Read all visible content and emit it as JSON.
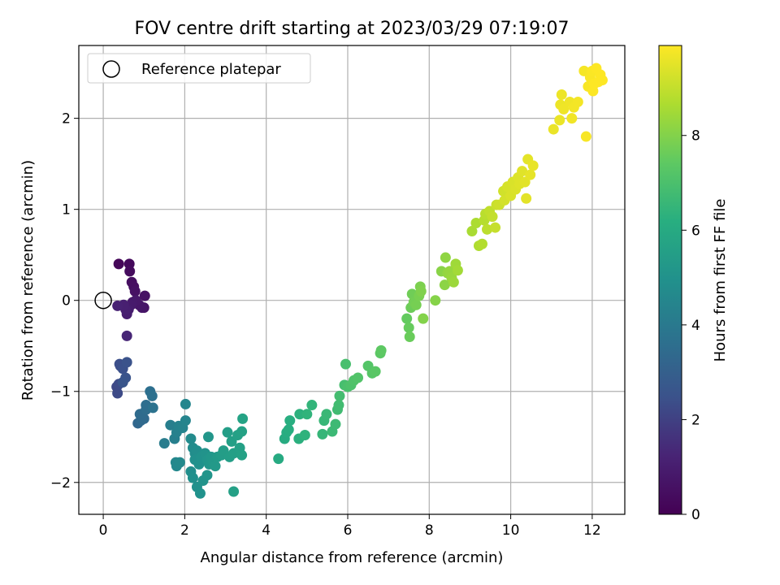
{
  "chart_data": {
    "type": "scatter",
    "title": "FOV centre drift starting at 2023/03/29 07:19:07",
    "xlabel": "Angular distance from reference (arcmin)",
    "ylabel": "Rotation from reference (arcmin)",
    "xlim": [
      -0.6,
      12.8
    ],
    "ylim": [
      -2.35,
      2.8
    ],
    "xticks": [
      0,
      2,
      4,
      6,
      8,
      10,
      12
    ],
    "yticks": [
      -2,
      -1,
      0,
      1,
      2
    ],
    "grid": true,
    "legend": {
      "placement": "top-left",
      "entries": [
        "Reference platepar"
      ]
    },
    "reference_point": {
      "x": 0,
      "y": 0
    },
    "colorbar": {
      "label": "Hours from first FF file",
      "colormap": "viridis",
      "range": [
        0,
        9.9
      ],
      "ticks": [
        0,
        2,
        4,
        6,
        8
      ]
    },
    "points": [
      {
        "x": 0.38,
        "y": 0.4,
        "h": 0.2
      },
      {
        "x": 0.64,
        "y": 0.4,
        "h": 0.3
      },
      {
        "x": 0.65,
        "y": 0.32,
        "h": 0.35
      },
      {
        "x": 0.7,
        "y": 0.2,
        "h": 0.45
      },
      {
        "x": 0.75,
        "y": 0.15,
        "h": 0.5
      },
      {
        "x": 0.78,
        "y": 0.1,
        "h": 0.55
      },
      {
        "x": 1.02,
        "y": 0.05,
        "h": 0.6
      },
      {
        "x": 1.0,
        "y": -0.08,
        "h": 0.65
      },
      {
        "x": 0.95,
        "y": -0.08,
        "h": 0.7
      },
      {
        "x": 0.88,
        "y": -0.05,
        "h": 0.75
      },
      {
        "x": 0.8,
        "y": 0.0,
        "h": 0.8
      },
      {
        "x": 0.72,
        "y": -0.02,
        "h": 0.85
      },
      {
        "x": 0.68,
        "y": -0.05,
        "h": 0.9
      },
      {
        "x": 0.62,
        "y": -0.1,
        "h": 0.95
      },
      {
        "x": 0.58,
        "y": -0.15,
        "h": 1.0
      },
      {
        "x": 0.55,
        "y": -0.1,
        "h": 1.05
      },
      {
        "x": 0.5,
        "y": -0.05,
        "h": 1.1
      },
      {
        "x": 0.35,
        "y": -0.06,
        "h": 1.15
      },
      {
        "x": 0.58,
        "y": -0.39,
        "h": 1.3
      },
      {
        "x": 0.33,
        "y": -0.95,
        "h": 2.2
      },
      {
        "x": 0.35,
        "y": -1.02,
        "h": 2.25
      },
      {
        "x": 0.38,
        "y": -0.92,
        "h": 2.3
      },
      {
        "x": 0.42,
        "y": -0.72,
        "h": 2.35
      },
      {
        "x": 0.4,
        "y": -0.7,
        "h": 2.4
      },
      {
        "x": 0.48,
        "y": -0.75,
        "h": 2.45
      },
      {
        "x": 0.58,
        "y": -0.68,
        "h": 2.5
      },
      {
        "x": 0.55,
        "y": -0.85,
        "h": 2.55
      },
      {
        "x": 0.48,
        "y": -0.9,
        "h": 2.6
      },
      {
        "x": 0.85,
        "y": -1.35,
        "h": 3.3
      },
      {
        "x": 0.92,
        "y": -1.32,
        "h": 3.35
      },
      {
        "x": 1.0,
        "y": -1.3,
        "h": 3.4
      },
      {
        "x": 0.9,
        "y": -1.25,
        "h": 3.45
      },
      {
        "x": 1.05,
        "y": -1.2,
        "h": 3.5
      },
      {
        "x": 1.05,
        "y": -1.15,
        "h": 3.55
      },
      {
        "x": 1.15,
        "y": -1.0,
        "h": 3.6
      },
      {
        "x": 1.2,
        "y": -1.05,
        "h": 3.65
      },
      {
        "x": 1.22,
        "y": -1.18,
        "h": 3.7
      },
      {
        "x": 1.5,
        "y": -1.57,
        "h": 4.1
      },
      {
        "x": 1.65,
        "y": -1.37,
        "h": 4.2
      },
      {
        "x": 1.75,
        "y": -1.52,
        "h": 4.25
      },
      {
        "x": 1.8,
        "y": -1.45,
        "h": 4.3
      },
      {
        "x": 1.85,
        "y": -1.38,
        "h": 4.35
      },
      {
        "x": 1.95,
        "y": -1.4,
        "h": 4.4
      },
      {
        "x": 2.02,
        "y": -1.32,
        "h": 4.45
      },
      {
        "x": 2.02,
        "y": -1.14,
        "h": 4.5
      },
      {
        "x": 1.78,
        "y": -1.78,
        "h": 4.55
      },
      {
        "x": 1.8,
        "y": -1.82,
        "h": 4.6
      },
      {
        "x": 1.88,
        "y": -1.78,
        "h": 4.65
      },
      {
        "x": 2.15,
        "y": -1.52,
        "h": 4.7
      },
      {
        "x": 2.2,
        "y": -1.62,
        "h": 4.75
      },
      {
        "x": 2.25,
        "y": -1.68,
        "h": 4.8
      },
      {
        "x": 2.3,
        "y": -1.65,
        "h": 4.85
      },
      {
        "x": 2.25,
        "y": -1.75,
        "h": 4.9
      },
      {
        "x": 2.35,
        "y": -1.8,
        "h": 4.95
      },
      {
        "x": 2.4,
        "y": -1.72,
        "h": 5.0
      },
      {
        "x": 2.5,
        "y": -1.68,
        "h": 5.05
      },
      {
        "x": 2.55,
        "y": -1.75,
        "h": 5.1
      },
      {
        "x": 2.6,
        "y": -1.8,
        "h": 5.15
      },
      {
        "x": 2.65,
        "y": -1.72,
        "h": 5.2
      },
      {
        "x": 2.7,
        "y": -1.78,
        "h": 5.25
      },
      {
        "x": 2.75,
        "y": -1.82,
        "h": 5.3
      },
      {
        "x": 2.8,
        "y": -1.72,
        "h": 5.35
      },
      {
        "x": 2.9,
        "y": -1.7,
        "h": 5.4
      },
      {
        "x": 2.95,
        "y": -1.65,
        "h": 5.45
      },
      {
        "x": 3.1,
        "y": -1.72,
        "h": 5.5
      },
      {
        "x": 3.2,
        "y": -1.68,
        "h": 5.55
      },
      {
        "x": 3.35,
        "y": -1.62,
        "h": 5.6
      },
      {
        "x": 3.4,
        "y": -1.7,
        "h": 5.65
      },
      {
        "x": 2.15,
        "y": -1.88,
        "h": 4.85
      },
      {
        "x": 2.2,
        "y": -1.95,
        "h": 4.9
      },
      {
        "x": 2.3,
        "y": -2.05,
        "h": 4.95
      },
      {
        "x": 2.38,
        "y": -2.12,
        "h": 5.0
      },
      {
        "x": 2.45,
        "y": -1.98,
        "h": 5.05
      },
      {
        "x": 2.55,
        "y": -1.92,
        "h": 5.1
      },
      {
        "x": 2.58,
        "y": -1.5,
        "h": 5.15
      },
      {
        "x": 3.2,
        "y": -2.1,
        "h": 5.6
      },
      {
        "x": 3.05,
        "y": -1.45,
        "h": 5.5
      },
      {
        "x": 3.15,
        "y": -1.55,
        "h": 5.55
      },
      {
        "x": 3.3,
        "y": -1.48,
        "h": 5.6
      },
      {
        "x": 3.4,
        "y": -1.44,
        "h": 5.65
      },
      {
        "x": 3.42,
        "y": -1.3,
        "h": 5.7
      },
      {
        "x": 4.3,
        "y": -1.74,
        "h": 6.0
      },
      {
        "x": 4.45,
        "y": -1.52,
        "h": 6.05
      },
      {
        "x": 4.5,
        "y": -1.45,
        "h": 6.1
      },
      {
        "x": 4.55,
        "y": -1.42,
        "h": 6.15
      },
      {
        "x": 4.58,
        "y": -1.32,
        "h": 6.2
      },
      {
        "x": 4.8,
        "y": -1.52,
        "h": 6.25
      },
      {
        "x": 4.82,
        "y": -1.25,
        "h": 6.3
      },
      {
        "x": 4.95,
        "y": -1.48,
        "h": 6.35
      },
      {
        "x": 5.0,
        "y": -1.25,
        "h": 6.4
      },
      {
        "x": 5.12,
        "y": -1.15,
        "h": 6.45
      },
      {
        "x": 5.38,
        "y": -1.47,
        "h": 6.5
      },
      {
        "x": 5.42,
        "y": -1.32,
        "h": 6.55
      },
      {
        "x": 5.48,
        "y": -1.25,
        "h": 6.6
      },
      {
        "x": 5.62,
        "y": -1.44,
        "h": 6.65
      },
      {
        "x": 5.7,
        "y": -1.36,
        "h": 6.7
      },
      {
        "x": 5.75,
        "y": -1.2,
        "h": 6.75
      },
      {
        "x": 5.78,
        "y": -1.15,
        "h": 6.8
      },
      {
        "x": 5.8,
        "y": -1.05,
        "h": 6.85
      },
      {
        "x": 5.92,
        "y": -0.93,
        "h": 6.9
      },
      {
        "x": 5.95,
        "y": -0.7,
        "h": 6.95
      },
      {
        "x": 6.0,
        "y": -0.95,
        "h": 7.0
      },
      {
        "x": 6.08,
        "y": -0.93,
        "h": 7.05
      },
      {
        "x": 6.15,
        "y": -0.88,
        "h": 7.1
      },
      {
        "x": 6.25,
        "y": -0.85,
        "h": 7.15
      },
      {
        "x": 6.5,
        "y": -0.72,
        "h": 7.2
      },
      {
        "x": 6.6,
        "y": -0.8,
        "h": 7.25
      },
      {
        "x": 6.68,
        "y": -0.78,
        "h": 7.3
      },
      {
        "x": 6.8,
        "y": -0.58,
        "h": 7.35
      },
      {
        "x": 6.82,
        "y": -0.55,
        "h": 7.4
      },
      {
        "x": 7.45,
        "y": -0.2,
        "h": 7.5
      },
      {
        "x": 7.5,
        "y": -0.3,
        "h": 7.55
      },
      {
        "x": 7.52,
        "y": -0.4,
        "h": 7.6
      },
      {
        "x": 7.55,
        "y": -0.08,
        "h": 7.65
      },
      {
        "x": 7.58,
        "y": 0.07,
        "h": 7.7
      },
      {
        "x": 7.62,
        "y": -0.02,
        "h": 7.75
      },
      {
        "x": 7.68,
        "y": -0.05,
        "h": 7.8
      },
      {
        "x": 7.75,
        "y": 0.05,
        "h": 7.85
      },
      {
        "x": 7.78,
        "y": 0.15,
        "h": 7.9
      },
      {
        "x": 7.8,
        "y": 0.1,
        "h": 7.95
      },
      {
        "x": 7.85,
        "y": -0.2,
        "h": 8.0
      },
      {
        "x": 8.15,
        "y": 0.0,
        "h": 8.05
      },
      {
        "x": 8.3,
        "y": 0.32,
        "h": 8.1
      },
      {
        "x": 8.38,
        "y": 0.17,
        "h": 8.15
      },
      {
        "x": 8.4,
        "y": 0.47,
        "h": 8.2
      },
      {
        "x": 8.45,
        "y": 0.3,
        "h": 8.25
      },
      {
        "x": 8.5,
        "y": 0.32,
        "h": 8.3
      },
      {
        "x": 8.55,
        "y": 0.25,
        "h": 8.35
      },
      {
        "x": 8.6,
        "y": 0.2,
        "h": 8.4
      },
      {
        "x": 8.65,
        "y": 0.4,
        "h": 8.45
      },
      {
        "x": 8.7,
        "y": 0.33,
        "h": 8.5
      },
      {
        "x": 9.05,
        "y": 0.76,
        "h": 8.6
      },
      {
        "x": 9.15,
        "y": 0.85,
        "h": 8.65
      },
      {
        "x": 9.22,
        "y": 0.6,
        "h": 8.7
      },
      {
        "x": 9.3,
        "y": 0.62,
        "h": 8.75
      },
      {
        "x": 9.35,
        "y": 0.88,
        "h": 8.8
      },
      {
        "x": 9.38,
        "y": 0.95,
        "h": 8.85
      },
      {
        "x": 9.42,
        "y": 0.78,
        "h": 8.9
      },
      {
        "x": 9.48,
        "y": 0.98,
        "h": 8.95
      },
      {
        "x": 9.55,
        "y": 0.92,
        "h": 9.0
      },
      {
        "x": 9.62,
        "y": 0.8,
        "h": 9.05
      },
      {
        "x": 9.65,
        "y": 1.05,
        "h": 9.1
      },
      {
        "x": 9.72,
        "y": 1.05,
        "h": 9.15
      },
      {
        "x": 9.82,
        "y": 1.2,
        "h": 9.2
      },
      {
        "x": 9.85,
        "y": 1.1,
        "h": 9.25
      },
      {
        "x": 9.92,
        "y": 1.25,
        "h": 9.3
      },
      {
        "x": 10.0,
        "y": 1.15,
        "h": 9.32
      },
      {
        "x": 10.05,
        "y": 1.3,
        "h": 9.35
      },
      {
        "x": 10.12,
        "y": 1.22,
        "h": 9.38
      },
      {
        "x": 10.18,
        "y": 1.35,
        "h": 9.4
      },
      {
        "x": 10.22,
        "y": 1.28,
        "h": 9.42
      },
      {
        "x": 10.28,
        "y": 1.42,
        "h": 9.45
      },
      {
        "x": 10.35,
        "y": 1.3,
        "h": 9.48
      },
      {
        "x": 10.38,
        "y": 1.12,
        "h": 9.5
      },
      {
        "x": 10.42,
        "y": 1.55,
        "h": 9.52
      },
      {
        "x": 10.48,
        "y": 1.38,
        "h": 9.55
      },
      {
        "x": 10.55,
        "y": 1.48,
        "h": 9.58
      },
      {
        "x": 11.05,
        "y": 1.88,
        "h": 9.6
      },
      {
        "x": 11.2,
        "y": 1.98,
        "h": 9.62
      },
      {
        "x": 11.22,
        "y": 2.15,
        "h": 9.64
      },
      {
        "x": 11.25,
        "y": 2.26,
        "h": 9.66
      },
      {
        "x": 11.3,
        "y": 2.1,
        "h": 9.68
      },
      {
        "x": 11.45,
        "y": 2.18,
        "h": 9.7
      },
      {
        "x": 11.5,
        "y": 2.0,
        "h": 9.72
      },
      {
        "x": 11.55,
        "y": 2.12,
        "h": 9.74
      },
      {
        "x": 11.65,
        "y": 2.18,
        "h": 9.76
      },
      {
        "x": 11.8,
        "y": 2.52,
        "h": 9.78
      },
      {
        "x": 11.85,
        "y": 1.8,
        "h": 9.8
      },
      {
        "x": 11.9,
        "y": 2.35,
        "h": 9.82
      },
      {
        "x": 11.95,
        "y": 2.45,
        "h": 9.84
      },
      {
        "x": 12.0,
        "y": 2.52,
        "h": 9.86
      },
      {
        "x": 12.02,
        "y": 2.3,
        "h": 9.88
      },
      {
        "x": 12.05,
        "y": 2.38,
        "h": 9.9
      },
      {
        "x": 12.1,
        "y": 2.55,
        "h": 9.9
      },
      {
        "x": 12.15,
        "y": 2.4,
        "h": 9.9
      },
      {
        "x": 12.2,
        "y": 2.48,
        "h": 9.9
      },
      {
        "x": 12.25,
        "y": 2.42,
        "h": 9.9
      }
    ]
  }
}
